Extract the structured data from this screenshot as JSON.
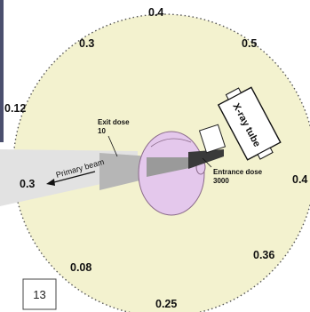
{
  "diagram": {
    "ring_labels": {
      "top": "0.4",
      "upper_left": "0.3",
      "upper_right": "0.5",
      "left": "0.12",
      "middle_left": "0.3",
      "right": "0.4",
      "lower_right": "0.36",
      "lower_left": "0.08",
      "bottom": "0.25"
    },
    "exit_dose": {
      "title": "Exit dose",
      "value": "10"
    },
    "entrance_dose": {
      "title": "Entrance dose",
      "value": "3000"
    },
    "primary_beam_label": "Primary beam",
    "tube_label": "X-ray tube",
    "slide_number": "13"
  },
  "colors": {
    "field_fill": "#f3f2cf",
    "head_fill": "#e4c8ec",
    "beam_light": "#e0e0e0",
    "beam_mid": "#b8b8b8",
    "beam_dark": "#888888",
    "beam_darkest": "#3a3a3a",
    "left_edge_bar": "#4b4f6e"
  }
}
